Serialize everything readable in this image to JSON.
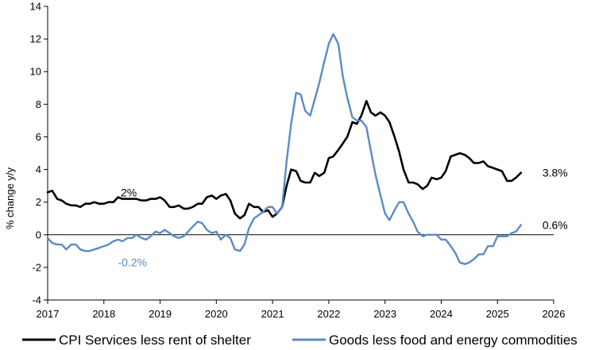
{
  "chart_data": {
    "type": "line",
    "title": "",
    "xlabel": "",
    "ylabel": "% change y/y",
    "xlim": [
      2017,
      2026
    ],
    "ylim": [
      -4,
      14
    ],
    "x_ticks": [
      "2017",
      "2018",
      "2019",
      "2020",
      "2021",
      "2022",
      "2023",
      "2024",
      "2025",
      "2026"
    ],
    "y_ticks": [
      "-4",
      "-2",
      "0",
      "2",
      "4",
      "6",
      "8",
      "10",
      "12",
      "14"
    ],
    "grid": false,
    "legend_position": "bottom",
    "series": [
      {
        "name": "CPI Services less rent of shelter",
        "color": "#000000",
        "points": [
          [
            2017.0,
            2.6
          ],
          [
            2017.08,
            2.7
          ],
          [
            2017.17,
            2.2
          ],
          [
            2017.25,
            2.1
          ],
          [
            2017.33,
            1.9
          ],
          [
            2017.42,
            1.8
          ],
          [
            2017.5,
            1.8
          ],
          [
            2017.58,
            1.7
          ],
          [
            2017.67,
            1.9
          ],
          [
            2017.75,
            1.9
          ],
          [
            2017.83,
            2.0
          ],
          [
            2017.92,
            1.9
          ],
          [
            2018.0,
            1.9
          ],
          [
            2018.08,
            2.0
          ],
          [
            2018.17,
            2.0
          ],
          [
            2018.25,
            2.3
          ],
          [
            2018.33,
            2.2
          ],
          [
            2018.42,
            2.2
          ],
          [
            2018.5,
            2.2
          ],
          [
            2018.58,
            2.2
          ],
          [
            2018.67,
            2.1
          ],
          [
            2018.75,
            2.1
          ],
          [
            2018.83,
            2.2
          ],
          [
            2018.92,
            2.2
          ],
          [
            2019.0,
            2.3
          ],
          [
            2019.08,
            2.1
          ],
          [
            2019.17,
            1.7
          ],
          [
            2019.25,
            1.7
          ],
          [
            2019.33,
            1.8
          ],
          [
            2019.42,
            1.6
          ],
          [
            2019.5,
            1.6
          ],
          [
            2019.58,
            1.7
          ],
          [
            2019.67,
            1.9
          ],
          [
            2019.75,
            1.9
          ],
          [
            2019.83,
            2.3
          ],
          [
            2019.92,
            2.4
          ],
          [
            2020.0,
            2.2
          ],
          [
            2020.08,
            2.4
          ],
          [
            2020.17,
            2.5
          ],
          [
            2020.25,
            2.1
          ],
          [
            2020.33,
            1.3
          ],
          [
            2020.42,
            1.0
          ],
          [
            2020.5,
            1.2
          ],
          [
            2020.58,
            1.9
          ],
          [
            2020.67,
            1.7
          ],
          [
            2020.75,
            1.7
          ],
          [
            2020.83,
            1.4
          ],
          [
            2020.92,
            1.5
          ],
          [
            2021.0,
            1.1
          ],
          [
            2021.08,
            1.3
          ],
          [
            2021.17,
            1.7
          ],
          [
            2021.25,
            3.0
          ],
          [
            2021.33,
            4.0
          ],
          [
            2021.42,
            3.9
          ],
          [
            2021.5,
            3.3
          ],
          [
            2021.58,
            3.2
          ],
          [
            2021.67,
            3.2
          ],
          [
            2021.75,
            3.8
          ],
          [
            2021.83,
            3.6
          ],
          [
            2021.92,
            3.8
          ],
          [
            2022.0,
            4.7
          ],
          [
            2022.08,
            4.8
          ],
          [
            2022.17,
            5.2
          ],
          [
            2022.25,
            5.6
          ],
          [
            2022.33,
            6.0
          ],
          [
            2022.42,
            6.9
          ],
          [
            2022.5,
            6.8
          ],
          [
            2022.58,
            7.3
          ],
          [
            2022.67,
            8.2
          ],
          [
            2022.75,
            7.5
          ],
          [
            2022.83,
            7.3
          ],
          [
            2022.92,
            7.5
          ],
          [
            2023.0,
            7.3
          ],
          [
            2023.08,
            6.9
          ],
          [
            2023.17,
            6.0
          ],
          [
            2023.25,
            5.1
          ],
          [
            2023.33,
            4.0
          ],
          [
            2023.42,
            3.2
          ],
          [
            2023.5,
            3.2
          ],
          [
            2023.58,
            3.1
          ],
          [
            2023.67,
            2.8
          ],
          [
            2023.75,
            3.0
          ],
          [
            2023.83,
            3.5
          ],
          [
            2023.92,
            3.4
          ],
          [
            2024.0,
            3.5
          ],
          [
            2024.08,
            3.9
          ],
          [
            2024.17,
            4.8
          ],
          [
            2024.25,
            4.9
          ],
          [
            2024.33,
            5.0
          ],
          [
            2024.42,
            4.9
          ],
          [
            2024.5,
            4.7
          ],
          [
            2024.58,
            4.4
          ],
          [
            2024.67,
            4.4
          ],
          [
            2024.75,
            4.5
          ],
          [
            2024.83,
            4.2
          ],
          [
            2024.92,
            4.1
          ],
          [
            2025.0,
            4.0
          ],
          [
            2025.08,
            3.9
          ],
          [
            2025.17,
            3.3
          ],
          [
            2025.25,
            3.3
          ],
          [
            2025.33,
            3.5
          ],
          [
            2025.42,
            3.8
          ]
        ]
      },
      {
        "name": "Goods less food and energy commodities",
        "color": "#5b8bc2",
        "points": [
          [
            2017.0,
            -0.2
          ],
          [
            2017.08,
            -0.5
          ],
          [
            2017.17,
            -0.6
          ],
          [
            2017.25,
            -0.6
          ],
          [
            2017.33,
            -0.9
          ],
          [
            2017.42,
            -0.6
          ],
          [
            2017.5,
            -0.6
          ],
          [
            2017.58,
            -0.9
          ],
          [
            2017.67,
            -1.0
          ],
          [
            2017.75,
            -1.0
          ],
          [
            2017.83,
            -0.9
          ],
          [
            2017.92,
            -0.8
          ],
          [
            2018.0,
            -0.7
          ],
          [
            2018.08,
            -0.6
          ],
          [
            2018.17,
            -0.4
          ],
          [
            2018.25,
            -0.3
          ],
          [
            2018.33,
            -0.4
          ],
          [
            2018.42,
            -0.2
          ],
          [
            2018.5,
            -0.2
          ],
          [
            2018.58,
            0.0
          ],
          [
            2018.67,
            -0.2
          ],
          [
            2018.75,
            -0.3
          ],
          [
            2018.83,
            -0.1
          ],
          [
            2018.92,
            0.2
          ],
          [
            2019.0,
            0.1
          ],
          [
            2019.08,
            0.3
          ],
          [
            2019.17,
            0.1
          ],
          [
            2019.25,
            -0.1
          ],
          [
            2019.33,
            -0.2
          ],
          [
            2019.42,
            -0.1
          ],
          [
            2019.5,
            0.2
          ],
          [
            2019.58,
            0.5
          ],
          [
            2019.67,
            0.8
          ],
          [
            2019.75,
            0.7
          ],
          [
            2019.83,
            0.3
          ],
          [
            2019.92,
            0.1
          ],
          [
            2020.0,
            0.2
          ],
          [
            2020.08,
            -0.3
          ],
          [
            2020.17,
            0.0
          ],
          [
            2020.25,
            -0.2
          ],
          [
            2020.33,
            -0.9
          ],
          [
            2020.42,
            -1.0
          ],
          [
            2020.5,
            -0.6
          ],
          [
            2020.58,
            0.4
          ],
          [
            2020.67,
            1.0
          ],
          [
            2020.75,
            1.2
          ],
          [
            2020.83,
            1.4
          ],
          [
            2020.92,
            1.7
          ],
          [
            2021.0,
            1.7
          ],
          [
            2021.08,
            1.3
          ],
          [
            2021.17,
            1.7
          ],
          [
            2021.25,
            4.5
          ],
          [
            2021.33,
            6.8
          ],
          [
            2021.42,
            8.7
          ],
          [
            2021.5,
            8.6
          ],
          [
            2021.58,
            7.6
          ],
          [
            2021.67,
            7.3
          ],
          [
            2021.75,
            8.3
          ],
          [
            2021.83,
            9.3
          ],
          [
            2021.92,
            10.6
          ],
          [
            2022.0,
            11.7
          ],
          [
            2022.08,
            12.3
          ],
          [
            2022.17,
            11.7
          ],
          [
            2022.25,
            9.7
          ],
          [
            2022.33,
            8.4
          ],
          [
            2022.42,
            7.2
          ],
          [
            2022.5,
            7.0
          ],
          [
            2022.58,
            7.0
          ],
          [
            2022.67,
            6.6
          ],
          [
            2022.75,
            5.1
          ],
          [
            2022.83,
            3.7
          ],
          [
            2022.92,
            2.4
          ],
          [
            2023.0,
            1.3
          ],
          [
            2023.08,
            0.9
          ],
          [
            2023.17,
            1.5
          ],
          [
            2023.25,
            2.0
          ],
          [
            2023.33,
            2.0
          ],
          [
            2023.42,
            1.3
          ],
          [
            2023.5,
            0.8
          ],
          [
            2023.58,
            0.2
          ],
          [
            2023.67,
            -0.1
          ],
          [
            2023.75,
            0.0
          ],
          [
            2023.83,
            0.0
          ],
          [
            2023.92,
            0.0
          ],
          [
            2024.0,
            -0.3
          ],
          [
            2024.08,
            -0.3
          ],
          [
            2024.17,
            -0.7
          ],
          [
            2024.25,
            -1.1
          ],
          [
            2024.33,
            -1.7
          ],
          [
            2024.42,
            -1.8
          ],
          [
            2024.5,
            -1.7
          ],
          [
            2024.58,
            -1.5
          ],
          [
            2024.67,
            -1.2
          ],
          [
            2024.75,
            -1.2
          ],
          [
            2024.83,
            -0.7
          ],
          [
            2024.92,
            -0.7
          ],
          [
            2025.0,
            -0.1
          ],
          [
            2025.08,
            -0.1
          ],
          [
            2025.17,
            -0.1
          ],
          [
            2025.25,
            0.1
          ],
          [
            2025.33,
            0.2
          ],
          [
            2025.42,
            0.6
          ]
        ]
      }
    ],
    "annotations": [
      {
        "text": "2%",
        "x": 2018.3,
        "y": 2.6,
        "color": "#000000"
      },
      {
        "text": "-0.2%",
        "x": 2018.25,
        "y": -1.7,
        "color": "#5b8bc2"
      },
      {
        "text": "3.8%",
        "x": 2025.8,
        "y": 3.8,
        "color": "#000000"
      },
      {
        "text": "0.6%",
        "x": 2025.8,
        "y": 0.6,
        "color": "#000000"
      }
    ]
  }
}
